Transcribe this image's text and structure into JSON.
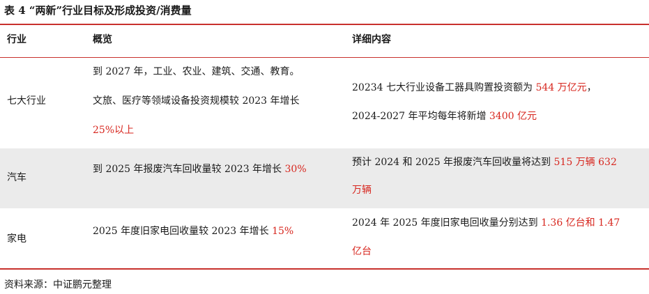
{
  "title": "表 4 “两新”行业目标及形成投资/消费量",
  "headers": {
    "industry": "行业",
    "overview": "概览",
    "details": "详细内容"
  },
  "rows": [
    {
      "industry": "七大行业",
      "overview": [
        "到 2027 年，工业、农业、建筑、交通、教育。",
        "文旅、医疗等领域设备投资规模较 2023 年增长"
      ],
      "overview_red": "25%以上",
      "details_line1_a": "20234 七大行业设备工器具购置投资额为 ",
      "details_line1_red": "544 万亿元",
      "details_line1_b": "，",
      "details_line2_a": "2024-2027 年平均每年将新增 ",
      "details_line2_red": "3400 亿元"
    },
    {
      "industry": "汽车",
      "overview_a": "到 2025 年报废汽车回收量较 2023 年增长 ",
      "overview_red": "30%",
      "details_line1_a": "预计 2024 和 2025 年报废汽车回收量将达到 ",
      "details_line1_red": "515 万辆 632",
      "details_line2_red": "万辆"
    },
    {
      "industry": "家电",
      "overview_a": "2025 年度旧家电回收量较 2023 年增长 ",
      "overview_red": "15%",
      "details_line1_a": "2024 年 2025 年度旧家电回收量分别达到 ",
      "details_line1_red": "1.36 亿台和 1.47",
      "details_line2_red": "亿台"
    }
  ],
  "source": "资料来源：中证鹏元整理",
  "colors": {
    "rule": "#c8302c",
    "highlight": "#d7261e",
    "band": "#ebebeb"
  }
}
